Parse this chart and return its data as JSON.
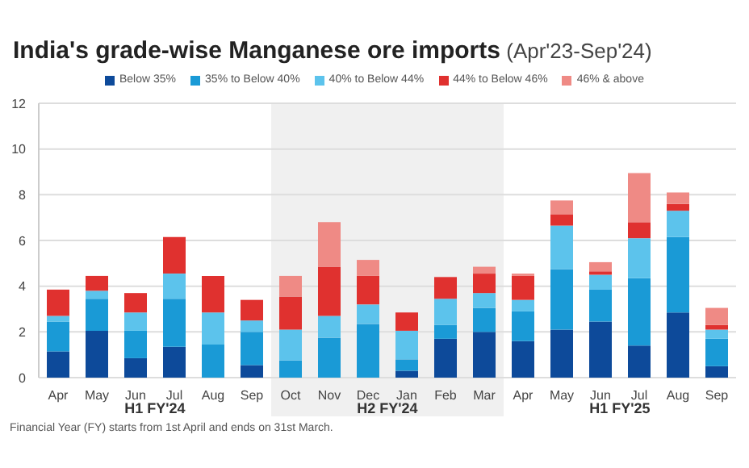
{
  "chart_data": {
    "type": "bar",
    "stacked": true,
    "title": "India's grade-wise Manganese ore imports",
    "subtitle": "(Apr'23-Sep'24)",
    "categories": [
      "Apr",
      "May",
      "Jun",
      "Jul",
      "Aug",
      "Sep",
      "Oct",
      "Nov",
      "Dec",
      "Jan",
      "Feb",
      "Mar",
      "Apr",
      "May",
      "Jun",
      "Jul",
      "Aug",
      "Sep"
    ],
    "series": [
      {
        "name": "Below 35%",
        "color": "#0d4a9a",
        "values": [
          1.15,
          2.05,
          0.85,
          1.35,
          0,
          0.55,
          0,
          0,
          0,
          0.3,
          1.7,
          2.0,
          1.6,
          2.1,
          2.45,
          1.4,
          2.85,
          0.5
        ]
      },
      {
        "name": "35% to Below 40%",
        "color": "#1a9ad6",
        "values": [
          1.3,
          1.4,
          1.2,
          2.1,
          1.45,
          1.45,
          0.75,
          1.75,
          2.35,
          0.5,
          0.6,
          1.05,
          1.3,
          2.65,
          1.4,
          2.95,
          3.3,
          1.2
        ]
      },
      {
        "name": "40% to Below 44%",
        "color": "#5cc3ec",
        "values": [
          0.25,
          0.35,
          0.8,
          1.1,
          1.4,
          0.5,
          1.35,
          0.95,
          0.85,
          1.25,
          1.15,
          0.65,
          0.5,
          1.9,
          0.65,
          1.75,
          1.15,
          0.4
        ]
      },
      {
        "name": "44% to Below 46%",
        "color": "#e0312f",
        "values": [
          1.15,
          0.65,
          0.85,
          1.6,
          1.6,
          0.9,
          1.45,
          2.15,
          1.25,
          0.8,
          0.95,
          0.85,
          1.05,
          0.5,
          0.15,
          0.7,
          0.3,
          0.2
        ]
      },
      {
        "name": "46% & above",
        "color": "#ef8a85",
        "values": [
          0,
          0,
          0,
          0,
          0,
          0,
          0.9,
          1.95,
          0.7,
          0,
          0,
          0.3,
          0.1,
          0.6,
          0.4,
          2.15,
          0.5,
          0.75
        ]
      }
    ],
    "ylim": [
      0,
      12
    ],
    "yticks": [
      0,
      2,
      4,
      6,
      8,
      10,
      12
    ],
    "grid": "y",
    "legend": "top",
    "bands": [
      {
        "axis": "x",
        "from": "Oct",
        "to": "Mar",
        "label": "H2 FY'24",
        "color": "#f0f0f0"
      }
    ],
    "annotations": [
      "H1 FY'24",
      "H1 FY'25",
      "Financial Year (FY) starts from 1st April and ends on 31st March."
    ]
  }
}
